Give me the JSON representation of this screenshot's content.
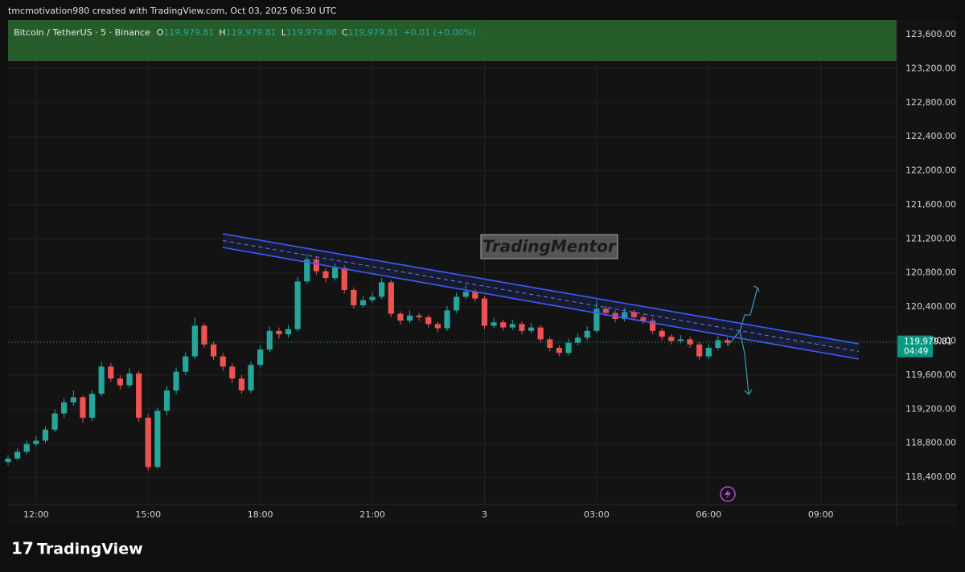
{
  "header": {
    "credit": "tmcmotivation980 created with TradingView.com, Oct 03, 2025 06:30 UTC"
  },
  "legend": {
    "symbol": "Bitcoin / TetherUS · 5 · Binance",
    "items": [
      {
        "key": "O",
        "value": "119,979.81"
      },
      {
        "key": "H",
        "value": "119,979.81"
      },
      {
        "key": "L",
        "value": "119,979.80"
      },
      {
        "key": "C",
        "value": "119,979.81"
      }
    ],
    "change": "+0.01 (+0.00%)"
  },
  "watermark": "TradingMentor",
  "footer": {
    "brand": "TradingView"
  },
  "chart_data": {
    "type": "candlestick",
    "up_color": "#26a69a",
    "down_color": "#ef5350",
    "grid": true,
    "ylim": [
      118080,
      123770
    ],
    "yticks": [
      {
        "value": 118400,
        "label": "118,400.00"
      },
      {
        "value": 118800,
        "label": "118,800.00"
      },
      {
        "value": 119200,
        "label": "119,200.00"
      },
      {
        "value": 119600,
        "label": "119,600.00"
      },
      {
        "value": 120000,
        "label": "120,000.00"
      },
      {
        "value": 120400,
        "label": "120,400.00"
      },
      {
        "value": 120800,
        "label": "120,800.00"
      },
      {
        "value": 121200,
        "label": "121,200.00"
      },
      {
        "value": 121600,
        "label": "121,600.00"
      },
      {
        "value": 122000,
        "label": "122,000.00"
      },
      {
        "value": 122400,
        "label": "122,400.00"
      },
      {
        "value": 122800,
        "label": "122,800.00"
      },
      {
        "value": 123200,
        "label": "123,200.00"
      },
      {
        "value": 123600,
        "label": "123,600.00"
      }
    ],
    "xlim": [
      -0.75,
      23.03
    ],
    "xticks": [
      {
        "value": 0,
        "label": "12:00"
      },
      {
        "value": 3,
        "label": "15:00"
      },
      {
        "value": 6,
        "label": "18:00"
      },
      {
        "value": 9,
        "label": "21:00"
      },
      {
        "value": 12,
        "label": "3"
      },
      {
        "value": 15,
        "label": "03:00"
      },
      {
        "value": 18,
        "label": "06:00"
      },
      {
        "value": 21,
        "label": "09:00"
      }
    ],
    "last_price": {
      "value": 119979.81,
      "label": "119,979.81",
      "countdown": "04:49",
      "color": "#089981"
    },
    "x": [
      -0.75,
      -0.5,
      -0.25,
      0,
      0.25,
      0.5,
      0.75,
      1,
      1.25,
      1.5,
      1.75,
      2,
      2.25,
      2.5,
      2.75,
      3,
      3.25,
      3.5,
      3.75,
      4,
      4.25,
      4.5,
      4.75,
      5,
      5.25,
      5.5,
      5.75,
      6,
      6.25,
      6.5,
      6.75,
      7,
      7.25,
      7.5,
      7.75,
      8,
      8.25,
      8.5,
      8.75,
      9,
      9.25,
      9.5,
      9.75,
      10,
      10.25,
      10.5,
      10.75,
      11,
      11.25,
      11.5,
      11.75,
      12,
      12.25,
      12.5,
      12.75,
      13,
      13.25,
      13.5,
      13.75,
      14,
      14.25,
      14.5,
      14.75,
      15,
      15.25,
      15.5,
      15.75,
      16,
      16.25,
      16.5,
      16.75,
      17,
      17.25,
      17.5,
      17.75,
      18,
      18.25,
      18.5
    ],
    "ohlc": [
      [
        118580,
        118660,
        118540,
        118620
      ],
      [
        118620,
        118740,
        118600,
        118700
      ],
      [
        118700,
        118830,
        118670,
        118790
      ],
      [
        118790,
        118880,
        118760,
        118830
      ],
      [
        118830,
        119000,
        118800,
        118960
      ],
      [
        118960,
        119200,
        118930,
        119150
      ],
      [
        119150,
        119330,
        119100,
        119280
      ],
      [
        119280,
        119420,
        119240,
        119340
      ],
      [
        119340,
        119360,
        119040,
        119100
      ],
      [
        119100,
        119420,
        119060,
        119380
      ],
      [
        119380,
        119760,
        119350,
        119700
      ],
      [
        119700,
        119740,
        119520,
        119560
      ],
      [
        119560,
        119600,
        119430,
        119480
      ],
      [
        119480,
        119680,
        119450,
        119620
      ],
      [
        119620,
        119650,
        119050,
        119100
      ],
      [
        119100,
        119140,
        118480,
        118520
      ],
      [
        118520,
        119220,
        118500,
        119180
      ],
      [
        119180,
        119470,
        119130,
        119420
      ],
      [
        119420,
        119690,
        119380,
        119640
      ],
      [
        119640,
        119870,
        119600,
        119820
      ],
      [
        119820,
        120280,
        119790,
        120180
      ],
      [
        120180,
        120210,
        119920,
        119960
      ],
      [
        119960,
        119990,
        119780,
        119820
      ],
      [
        119820,
        119860,
        119650,
        119700
      ],
      [
        119700,
        119740,
        119510,
        119560
      ],
      [
        119560,
        119600,
        119380,
        119420
      ],
      [
        119420,
        119760,
        119390,
        119720
      ],
      [
        119720,
        119950,
        119690,
        119900
      ],
      [
        119900,
        120170,
        119870,
        120120
      ],
      [
        120120,
        120160,
        120030,
        120080
      ],
      [
        120080,
        120190,
        120040,
        120140
      ],
      [
        120140,
        120750,
        120110,
        120700
      ],
      [
        120700,
        121020,
        120670,
        120960
      ],
      [
        120960,
        120990,
        120780,
        120820
      ],
      [
        120820,
        120860,
        120690,
        120740
      ],
      [
        120740,
        120910,
        120710,
        120860
      ],
      [
        120860,
        120890,
        120560,
        120600
      ],
      [
        120600,
        120630,
        120380,
        120420
      ],
      [
        120420,
        120530,
        120390,
        120480
      ],
      [
        120480,
        120570,
        120450,
        120520
      ],
      [
        120520,
        120740,
        120490,
        120690
      ],
      [
        120690,
        120720,
        120280,
        120320
      ],
      [
        120320,
        120350,
        120190,
        120240
      ],
      [
        120240,
        120360,
        120210,
        120300
      ],
      [
        120300,
        120330,
        120240,
        120280
      ],
      [
        120280,
        120310,
        120160,
        120200
      ],
      [
        120200,
        120230,
        120100,
        120150
      ],
      [
        120150,
        120410,
        120120,
        120360
      ],
      [
        120360,
        120570,
        120330,
        120520
      ],
      [
        120520,
        120660,
        120490,
        120580
      ],
      [
        120580,
        120610,
        120460,
        120500
      ],
      [
        120500,
        120530,
        120140,
        120180
      ],
      [
        120180,
        120270,
        120150,
        120220
      ],
      [
        120220,
        120250,
        120120,
        120160
      ],
      [
        120160,
        120250,
        120130,
        120200
      ],
      [
        120200,
        120230,
        120080,
        120120
      ],
      [
        120120,
        120210,
        120090,
        120160
      ],
      [
        120160,
        120190,
        119980,
        120020
      ],
      [
        120020,
        120050,
        119880,
        119920
      ],
      [
        119920,
        119950,
        119820,
        119860
      ],
      [
        119860,
        120030,
        119830,
        119980
      ],
      [
        119980,
        120090,
        119950,
        120040
      ],
      [
        120040,
        120170,
        120010,
        120120
      ],
      [
        120120,
        120480,
        120090,
        120380
      ],
      [
        120380,
        120410,
        120290,
        120330
      ],
      [
        120330,
        120360,
        120220,
        120260
      ],
      [
        120260,
        120390,
        120230,
        120340
      ],
      [
        120340,
        120370,
        120240,
        120280
      ],
      [
        120280,
        120310,
        120200,
        120240
      ],
      [
        120240,
        120270,
        120080,
        120120
      ],
      [
        120120,
        120150,
        120010,
        120050
      ],
      [
        120050,
        120080,
        119960,
        120000
      ],
      [
        120000,
        120070,
        119970,
        120020
      ],
      [
        120020,
        120050,
        119920,
        119960
      ],
      [
        119960,
        119990,
        119780,
        119820
      ],
      [
        119820,
        119960,
        119790,
        119920
      ],
      [
        119920,
        120060,
        119890,
        120010
      ],
      [
        120010,
        120040,
        119950,
        119980
      ]
    ]
  }
}
